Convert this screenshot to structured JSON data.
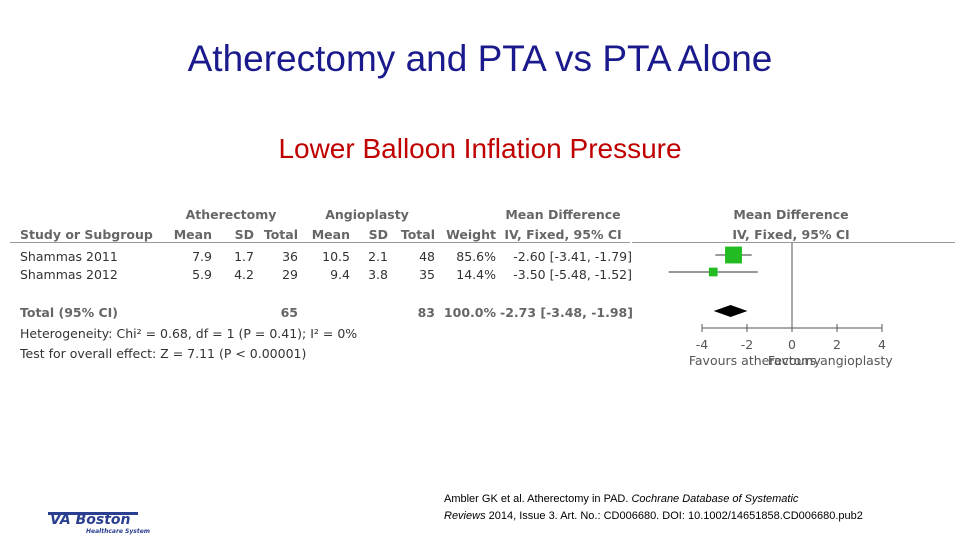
{
  "slide": {
    "title": "Atherectomy and PTA vs PTA Alone",
    "subtitle": "Lower Balloon Inflation Pressure",
    "colors": {
      "title": "#1a1a8c",
      "subtitle": "#c00000"
    }
  },
  "chart_data": {
    "type": "forest",
    "group_headers": {
      "experimental": "Atherectomy",
      "control": "Angioplasty",
      "effect": "Mean Difference",
      "plot": "Mean Difference"
    },
    "columns": [
      "Study or Subgroup",
      "Mean",
      "SD",
      "Total",
      "Mean",
      "SD",
      "Total",
      "Weight",
      "IV, Fixed, 95% CI",
      "IV, Fixed, 95% CI"
    ],
    "studies": [
      {
        "name": "Shammas 2011",
        "exp_mean": "7.9",
        "exp_sd": "1.7",
        "exp_total": "36",
        "ctl_mean": "10.5",
        "ctl_sd": "2.1",
        "ctl_total": "48",
        "weight": "85.6%",
        "ci_text": "-2.60 [-3.41, -1.79]",
        "md": -2.6,
        "lo": -3.41,
        "hi": -1.79
      },
      {
        "name": "Shammas 2012",
        "exp_mean": "5.9",
        "exp_sd": "4.2",
        "exp_total": "29",
        "ctl_mean": "9.4",
        "ctl_sd": "3.8",
        "ctl_total": "35",
        "weight": "14.4%",
        "ci_text": "-3.50 [-5.48, -1.52]",
        "md": -3.5,
        "lo": -5.48,
        "hi": -1.52
      }
    ],
    "total": {
      "name": "Total (95% CI)",
      "exp_total": "65",
      "ctl_total": "83",
      "weight": "100.0%",
      "ci_text": "-2.73 [-3.48, -1.98]",
      "md": -2.73,
      "lo": -3.48,
      "hi": -1.98
    },
    "heterogeneity": "Heterogeneity: Chi² = 0.68, df = 1 (P = 0.41); I² = 0%",
    "overall_test": "Test for overall effect: Z = 7.11 (P < 0.00001)",
    "xlim": [
      -4,
      4
    ],
    "ticks": [
      {
        "value": -4,
        "label": "-4"
      },
      {
        "value": -2,
        "label": "-2"
      },
      {
        "value": 0,
        "label": "0"
      },
      {
        "value": 2,
        "label": "2"
      },
      {
        "value": 4,
        "label": "4"
      }
    ],
    "favours_left": "Favours atherectomy",
    "favours_right": "Favours angioplasty",
    "colors": {
      "study_marker": "#22bb22",
      "diamond": "#000000",
      "text": "#333333",
      "header": "#666666"
    }
  },
  "citation": {
    "line1_plain": "Ambler GK et al. Atherectomy in PAD.  ",
    "line1_italic": "Cochrane Database of Systematic",
    "line2_italic": "Reviews",
    "line2_plain": " 2014, Issue 3. Art. No.: CD006680. DOI: 10.1002/14651858.CD006680.pub2"
  },
  "logo": {
    "text": "VA Boston",
    "subtext": "Healthcare System"
  }
}
